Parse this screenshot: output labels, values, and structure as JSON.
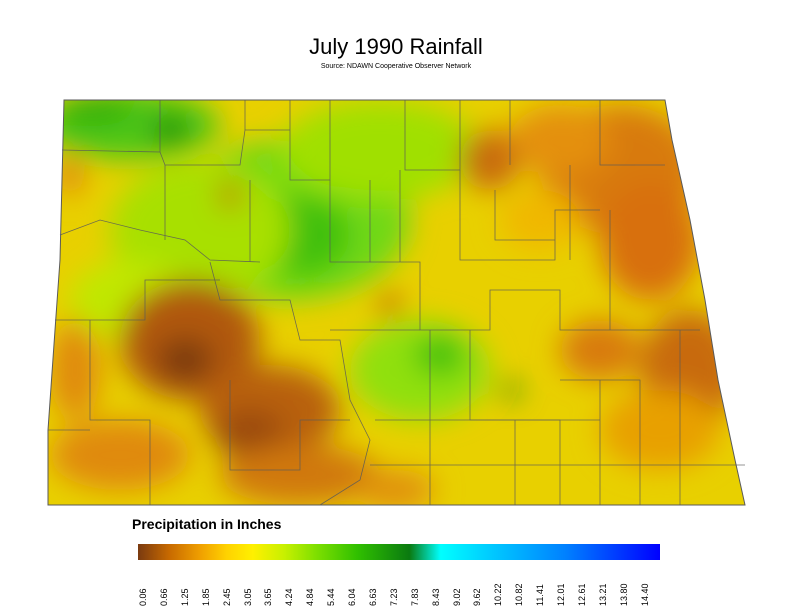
{
  "title": "July 1990 Rainfall",
  "subtitle": "Source: NDAWN Cooperative Observer Network",
  "legend": {
    "title": "Precipitation in Inches",
    "ticks": [
      "0.06",
      "0.66",
      "1.25",
      "1.85",
      "2.45",
      "3.05",
      "3.65",
      "4.24",
      "4.84",
      "5.44",
      "6.04",
      "6.63",
      "7.23",
      "7.83",
      "8.43",
      "9.02",
      "9.62",
      "10.22",
      "10.82",
      "11.41",
      "12.01",
      "12.61",
      "13.21",
      "13.80",
      "14.40"
    ],
    "colors": [
      "#7a3a10",
      "#c86a00",
      "#f0a000",
      "#ffd200",
      "#fff000",
      "#c8f000",
      "#80e000",
      "#30c000",
      "#0a7a10",
      "#00ffff",
      "#00c8ff",
      "#0080ff",
      "#0000ff"
    ]
  },
  "colors": {
    "dry": "#a0500f",
    "orange": "#e08a10",
    "yellow": "#f8e000",
    "lightgreen": "#a8e000",
    "green": "#40c010",
    "border": "#5a5a5a"
  }
}
